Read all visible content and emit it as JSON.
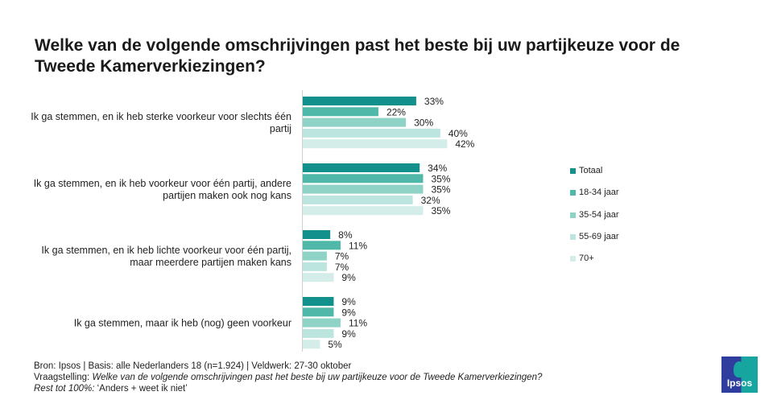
{
  "chart_data": {
    "type": "bar",
    "orientation": "horizontal",
    "title": "Welke van de volgende omschrijvingen past het beste bij uw partijkeuze voor de Tweede Kamerverkiezingen?",
    "categories": [
      "Ik ga stemmen, en ik heb sterke voorkeur voor slechts één partij",
      "Ik ga stemmen, en ik heb voorkeur voor één partij, andere partijen maken ook nog kans",
      "Ik ga stemmen, en ik heb lichte voorkeur voor één partij, maar meerdere partijen maken kans",
      "Ik ga stemmen, maar ik heb (nog) geen voorkeur"
    ],
    "series": [
      {
        "name": "Totaal",
        "color": "#12918c",
        "values": [
          33,
          34,
          8,
          9
        ]
      },
      {
        "name": "18-34 jaar",
        "color": "#4fb8a8",
        "values": [
          22,
          35,
          11,
          9
        ]
      },
      {
        "name": "35-54 jaar",
        "color": "#8fd3c7",
        "values": [
          30,
          35,
          7,
          11
        ]
      },
      {
        "name": "55-69 jaar",
        "color": "#bde5df",
        "values": [
          40,
          32,
          7,
          9
        ]
      },
      {
        "name": "70+",
        "color": "#d4ede9",
        "values": [
          42,
          35,
          9,
          5
        ]
      }
    ],
    "value_suffix": "%",
    "legend": "right",
    "grid": false
  },
  "footer": {
    "source": "Bron: Ipsos | Basis: alle Nederlanders  18 (n=1.924) | Veldwerk: 27-30 oktober",
    "question_label": "Vraagstelling: ",
    "question": "Welke van de volgende omschrijvingen  past het beste bij uw partijkeuze voor de Tweede  Kamerverkiezingen?",
    "rest_label": "Rest tot 100%: ",
    "rest": "‘Anders + weet ik niet’"
  },
  "logo": {
    "text": "Ipsos"
  }
}
